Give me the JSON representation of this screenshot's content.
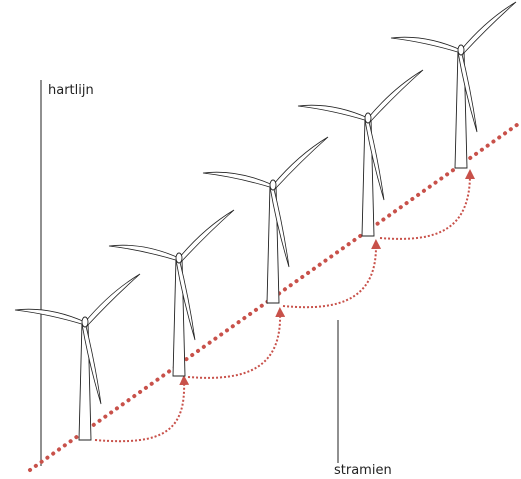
{
  "labels": {
    "centerline": "hartlijn",
    "grid": "stramien"
  }
}
